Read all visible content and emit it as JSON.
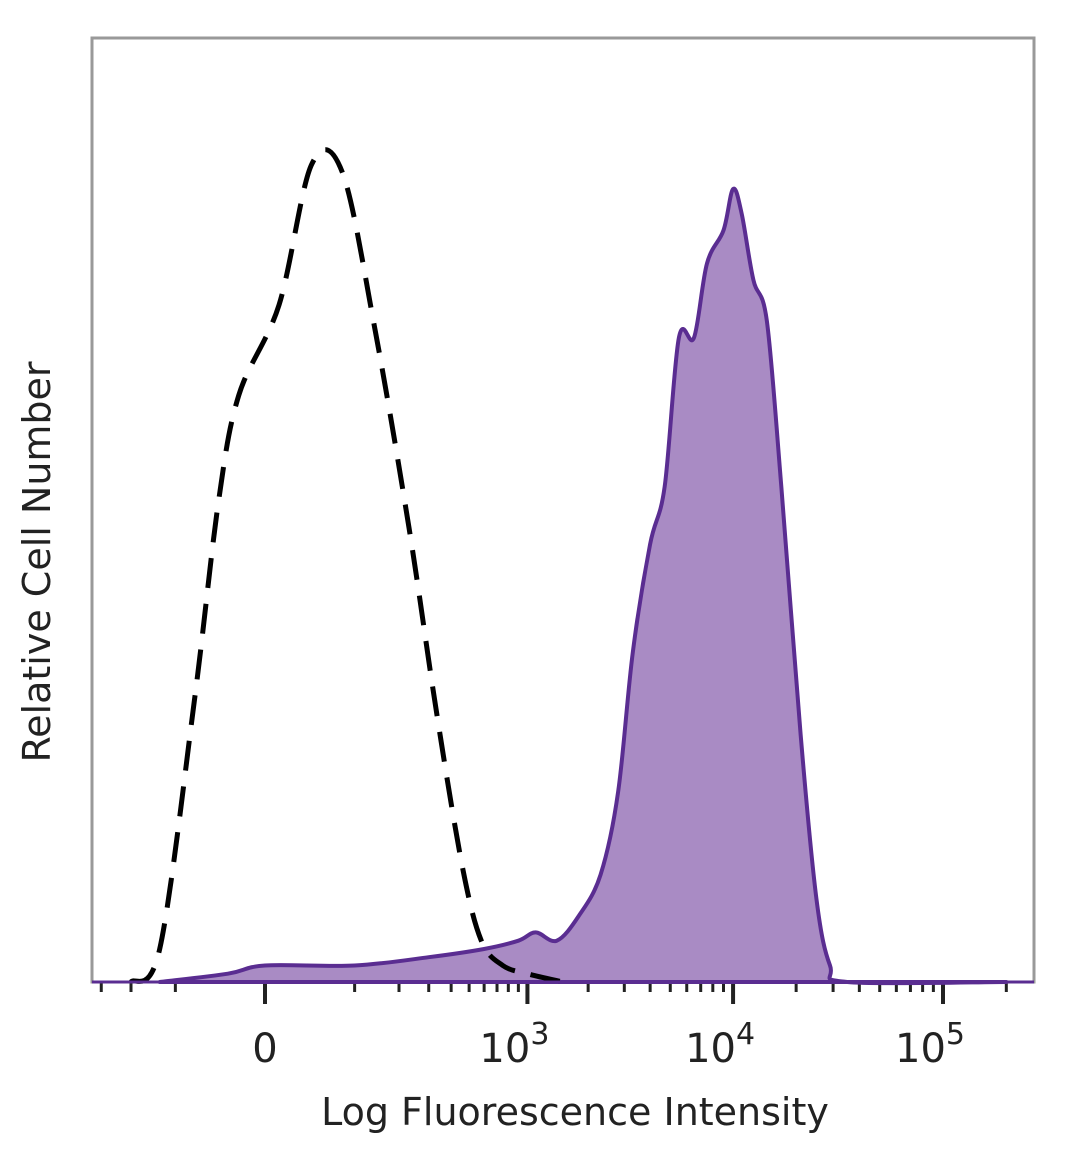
{
  "chart_data": {
    "type": "area",
    "title": "",
    "xlabel": "Log Fluorescence Intensity",
    "ylabel": "Relative Cell Number",
    "xscale": "biexponential (logicle)",
    "xlim": [
      -300,
      200000
    ],
    "ylim": [
      0,
      1.0
    ],
    "grid": false,
    "legend": "none",
    "x_ticks": [
      {
        "value": 0,
        "base": "0",
        "exp": ""
      },
      {
        "value": 1000,
        "base": "10",
        "exp": "3"
      },
      {
        "value": 10000,
        "base": "10",
        "exp": "4"
      },
      {
        "value": 100000,
        "base": "10",
        "exp": "5"
      }
    ],
    "series": [
      {
        "style": "dashed",
        "color": "#000000",
        "fill": "none",
        "points": [
          [
            -200,
            0.0
          ],
          [
            -130,
            0.04
          ],
          [
            -70,
            0.34
          ],
          [
            -40,
            0.58
          ],
          [
            -20,
            0.71
          ],
          [
            10,
            0.82
          ],
          [
            40,
            0.99
          ],
          [
            80,
            0.98
          ],
          [
            140,
            0.79
          ],
          [
            230,
            0.55
          ],
          [
            330,
            0.33
          ],
          [
            460,
            0.14
          ],
          [
            580,
            0.05
          ],
          [
            750,
            0.02
          ],
          [
            1000,
            0.01
          ],
          [
            1500,
            0.0
          ]
        ]
      },
      {
        "style": "solid",
        "color": "#5a2d91",
        "fill": "#a98bc4",
        "points": [
          [
            -130,
            0.0
          ],
          [
            -30,
            0.01
          ],
          [
            0,
            0.02
          ],
          [
            100,
            0.02
          ],
          [
            300,
            0.03
          ],
          [
            600,
            0.04
          ],
          [
            900,
            0.05
          ],
          [
            1100,
            0.06
          ],
          [
            1400,
            0.05
          ],
          [
            1800,
            0.08
          ],
          [
            2300,
            0.13
          ],
          [
            2800,
            0.23
          ],
          [
            3300,
            0.4
          ],
          [
            4000,
            0.53
          ],
          [
            4700,
            0.6
          ],
          [
            5500,
            0.78
          ],
          [
            6500,
            0.78
          ],
          [
            7500,
            0.87
          ],
          [
            9000,
            0.91
          ],
          [
            10000,
            0.96
          ],
          [
            11000,
            0.93
          ],
          [
            12500,
            0.85
          ],
          [
            14500,
            0.8
          ],
          [
            17000,
            0.6
          ],
          [
            21000,
            0.3
          ],
          [
            25000,
            0.1
          ],
          [
            29000,
            0.02
          ],
          [
            35000,
            0.0
          ],
          [
            200000,
            0.0
          ]
        ]
      }
    ],
    "colors": {
      "filled_histogram_line": "#5a2d91",
      "filled_histogram_fill": "#a98bc4",
      "control_histogram": "#000000",
      "frame": "#999999"
    }
  }
}
